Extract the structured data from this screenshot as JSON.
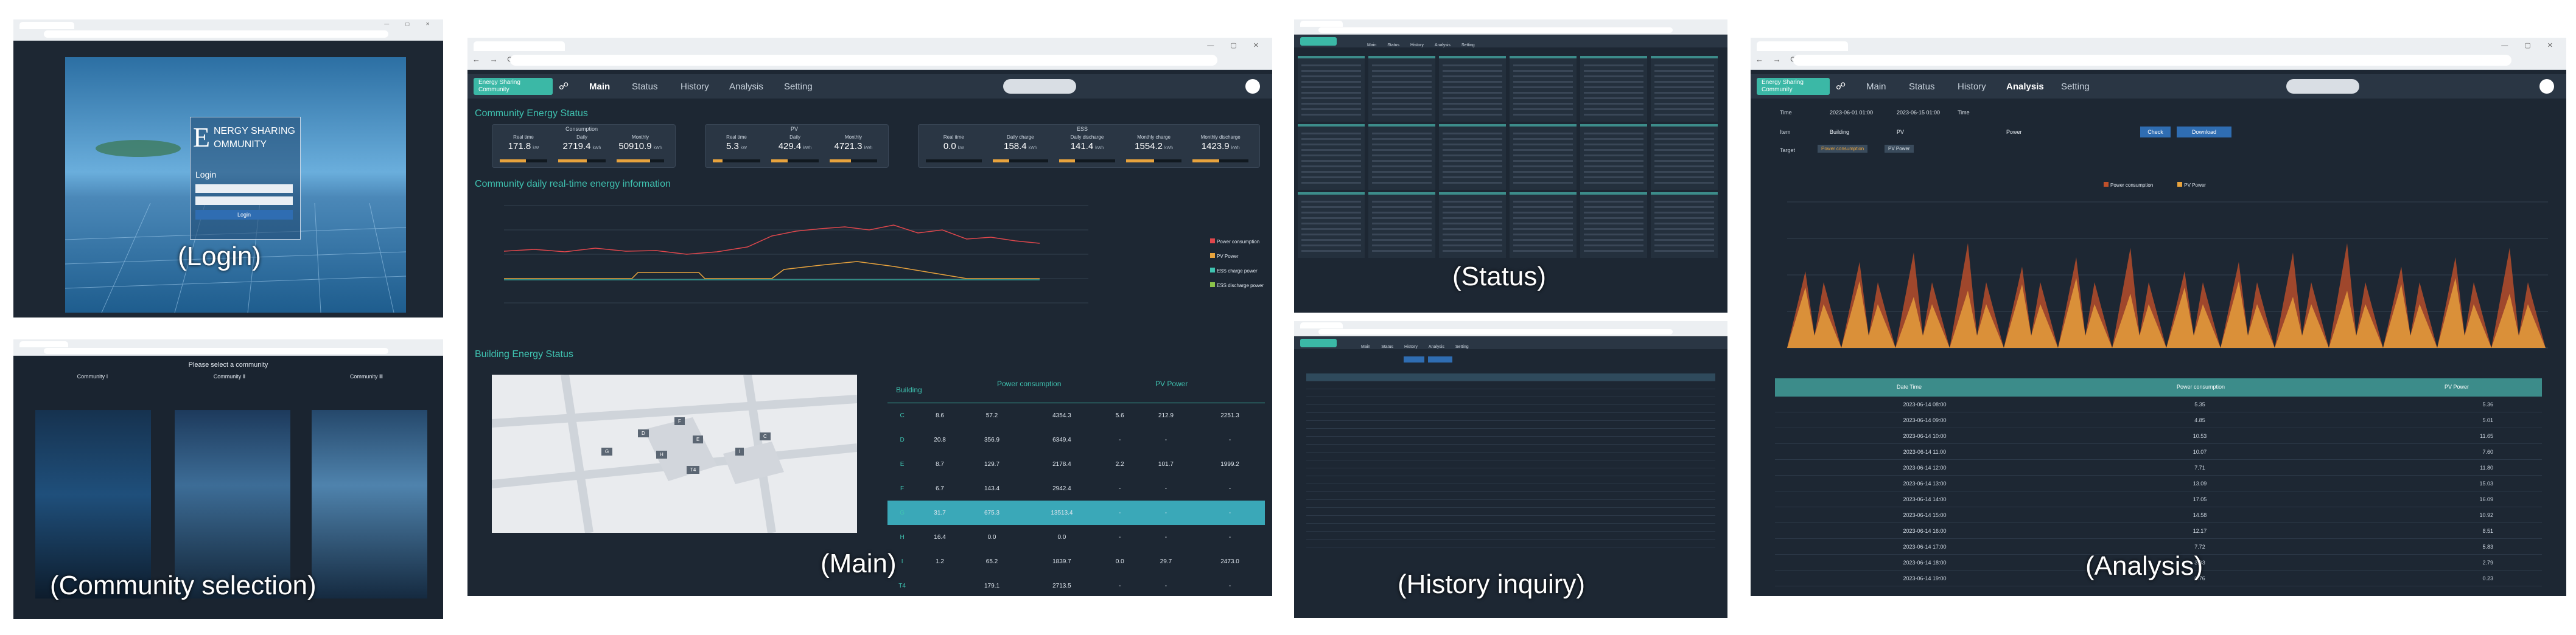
{
  "captions": {
    "login": "(Login)",
    "community_selection": "(Community selection)",
    "main": "(Main)",
    "status": "(Status)",
    "history": "(History inquiry)",
    "analysis": "(Analysis)"
  },
  "login": {
    "brand_line1": "NERGY SHARING",
    "brand_line2": "OMMUNITY",
    "brand_initial": "E",
    "heading": "Login",
    "submit": "Login"
  },
  "community": {
    "prompt": "Please select a community",
    "options": [
      "Community Ⅰ",
      "Community Ⅱ",
      "Community Ⅲ"
    ]
  },
  "main": {
    "app_title": "Energy Sharing Community",
    "nav": [
      "Main",
      "Status",
      "History",
      "Analysis",
      "Setting"
    ],
    "section_status": "Community Energy Status",
    "group_consumption": "Consumption",
    "group_pv": "PV",
    "group_ess": "ESS",
    "kpis_consumption": [
      {
        "label": "Real time",
        "value": "171.8",
        "unit": "kW",
        "fill": 0.55
      },
      {
        "label": "Daily",
        "value": "2719.4",
        "unit": "kWh",
        "fill": 0.6
      },
      {
        "label": "Monthly",
        "value": "50910.9",
        "unit": "kWh",
        "fill": 0.7
      }
    ],
    "kpis_pv": [
      {
        "label": "Real time",
        "value": "5.3",
        "unit": "kW",
        "fill": 0.2
      },
      {
        "label": "Daily",
        "value": "429.4",
        "unit": "kWh",
        "fill": 0.35
      },
      {
        "label": "Monthly",
        "value": "4721.3",
        "unit": "kWh",
        "fill": 0.45
      }
    ],
    "kpis_ess": [
      {
        "label": "Real time",
        "value": "0.0",
        "unit": "kW",
        "fill": 0.0
      },
      {
        "label": "Daily charge",
        "value": "158.4",
        "unit": "kWh",
        "fill": 0.3
      },
      {
        "label": "Daily discharge",
        "value": "141.4",
        "unit": "kWh",
        "fill": 0.28
      },
      {
        "label": "Monthly charge",
        "value": "1554.2",
        "unit": "kWh",
        "fill": 0.5
      },
      {
        "label": "Monthly discharge",
        "value": "1423.9",
        "unit": "kWh",
        "fill": 0.48
      }
    ],
    "section_daily": "Community daily real-time energy information",
    "legend": [
      {
        "name": "Power consumption",
        "color": "#e0474c"
      },
      {
        "name": "PV Power",
        "color": "#e8a33d"
      },
      {
        "name": "ESS charge power",
        "color": "#3fc3b1"
      },
      {
        "name": "ESS discharge power",
        "color": "#8bc34a"
      }
    ],
    "section_building": "Building Energy Status",
    "building_table": {
      "group_headers": [
        "Building",
        "Power consumption",
        "PV Power"
      ],
      "rows": [
        [
          "C",
          "8.6",
          "57.2",
          "4354.3",
          "5.6",
          "212.9",
          "2251.3"
        ],
        [
          "D",
          "20.8",
          "356.9",
          "6349.4",
          "-",
          "-",
          "-"
        ],
        [
          "E",
          "8.7",
          "129.7",
          "2178.4",
          "2.2",
          "101.7",
          "1999.2"
        ],
        [
          "F",
          "6.7",
          "143.4",
          "2942.4",
          "-",
          "-",
          "-"
        ],
        [
          "G",
          "31.7",
          "675.3",
          "13513.4",
          "-",
          "-",
          "-"
        ],
        [
          "H",
          "16.4",
          "0.0",
          "0.0",
          "-",
          "-",
          "-"
        ],
        [
          "I",
          "1.2",
          "65.2",
          "1839.7",
          "0.0",
          "29.7",
          "2473.0"
        ],
        [
          "T4",
          "",
          "179.1",
          "2713.5",
          "-",
          "-",
          "-"
        ]
      ],
      "highlight_row": 4
    },
    "map_labels": [
      "D",
      "E",
      "F",
      "G",
      "H",
      "I",
      "C",
      "T4"
    ]
  },
  "status": {
    "tabs": [
      "Main",
      "Status",
      "History",
      "Analysis",
      "Setting"
    ]
  },
  "history": {
    "tabs": [
      "Main",
      "Status",
      "History",
      "Analysis",
      "Setting"
    ]
  },
  "analysis": {
    "app_title": "Energy Sharing Community",
    "nav": [
      "Main",
      "Status",
      "History",
      "Analysis",
      "Setting"
    ],
    "filter_labels": [
      "Time",
      "Item",
      "Target"
    ],
    "from": "2023-06-01 01:00",
    "to": "2023-06-15 01:00",
    "unit": "Time",
    "building": "Building",
    "item": "PV",
    "power": "Power",
    "check_btn": "Check",
    "download_btn": "Download",
    "targets": [
      "Power consumption",
      "PV Power"
    ],
    "legend": [
      {
        "name": "Power consumption",
        "color": "#c0502a"
      },
      {
        "name": "PV Power",
        "color": "#e8a33d"
      }
    ],
    "table_headers": [
      "Date Time",
      "Power consumption",
      "PV Power"
    ],
    "table_rows": [
      [
        "2023-06-14 08:00",
        "5.35",
        "5.36"
      ],
      [
        "2023-06-14 09:00",
        "4.85",
        "5.01"
      ],
      [
        "2023-06-14 10:00",
        "10.53",
        "11.65"
      ],
      [
        "2023-06-14 11:00",
        "10.07",
        "7.60"
      ],
      [
        "2023-06-14 12:00",
        "7.71",
        "11.80"
      ],
      [
        "2023-06-14 13:00",
        "13.09",
        "15.03"
      ],
      [
        "2023-06-14 14:00",
        "17.05",
        "16.09"
      ],
      [
        "2023-06-14 15:00",
        "14.58",
        "10.92"
      ],
      [
        "2023-06-14 16:00",
        "12.17",
        "8.51"
      ],
      [
        "2023-06-14 17:00",
        "7.72",
        "5.83"
      ],
      [
        "2023-06-14 18:00",
        "3.33",
        "2.79"
      ],
      [
        "2023-06-14 19:00",
        "0.76",
        "0.23"
      ]
    ]
  }
}
